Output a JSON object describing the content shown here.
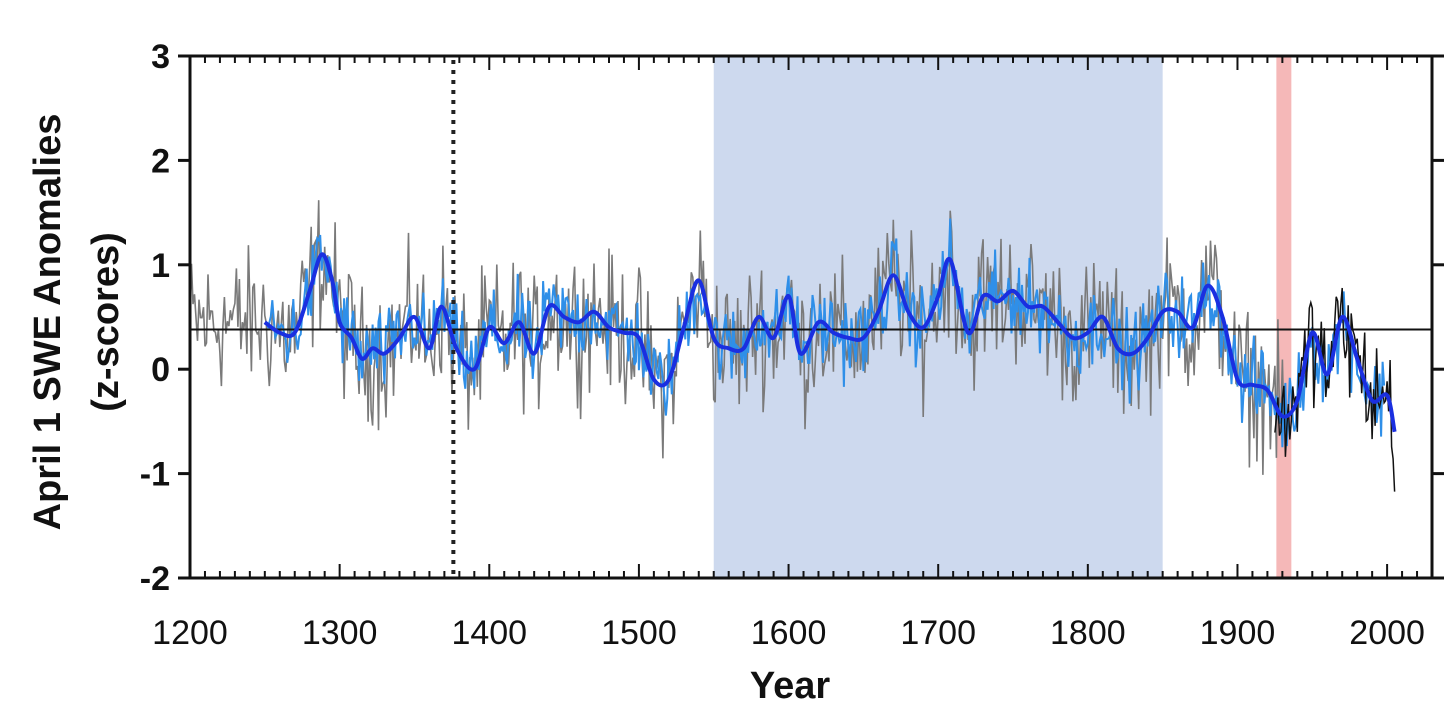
{
  "chart_data": {
    "type": "line",
    "title": "",
    "xlabel": "Year",
    "ylabel_line1": "April 1 SWE Anomalies",
    "ylabel_line2": "(z-scores)",
    "xlim": [
      1200,
      2030
    ],
    "ylim": [
      -2,
      3
    ],
    "x_ticks": [
      1200,
      1300,
      1400,
      1500,
      1600,
      1700,
      1800,
      1900,
      2000
    ],
    "x_tick_labels": [
      "1200",
      "1300",
      "1400",
      "1500",
      "1600",
      "1700",
      "1800",
      "1900",
      "2000"
    ],
    "y_ticks": [
      -2,
      -1,
      0,
      1,
      2,
      3
    ],
    "y_tick_labels": [
      "-2",
      "-1",
      "0",
      "1",
      "2",
      "3"
    ],
    "reference_line_y": 0.38,
    "vertical_marker_x": 1376,
    "shaded_spans": [
      {
        "from": 1550,
        "to": 1850,
        "color": "#cdd9ee"
      },
      {
        "from": 1926,
        "to": 1936,
        "color": "#f5b8b8"
      }
    ],
    "colors": {
      "raw_reconstruction": "#7a7a7a",
      "filtered_reconstruction": "#2f8fe8",
      "smoothed_reconstruction": "#1a2fe0",
      "observed": "#111111",
      "reference": "#111111"
    },
    "series": [
      {
        "x": [
          1250,
          1260,
          1270,
          1280,
          1288,
          1295,
          1300,
          1308,
          1315,
          1322,
          1330,
          1340,
          1350,
          1360,
          1368,
          1378,
          1390,
          1400,
          1410,
          1420,
          1430,
          1440,
          1450,
          1460,
          1470,
          1480,
          1490,
          1500,
          1510,
          1520,
          1530,
          1540,
          1550,
          1560,
          1570,
          1580,
          1590,
          1600,
          1608,
          1620,
          1630,
          1640,
          1650,
          1660,
          1670,
          1680,
          1690,
          1700,
          1708,
          1720,
          1730,
          1740,
          1750,
          1760,
          1770,
          1780,
          1790,
          1800,
          1810,
          1820,
          1830,
          1840,
          1850,
          1860,
          1870,
          1880,
          1890,
          1900,
          1910,
          1920,
          1930,
          1940,
          1950,
          1960,
          1970,
          1980,
          1990,
          2000,
          2005
        ],
        "values": [
          0.45,
          0.35,
          0.35,
          0.75,
          1.1,
          0.85,
          0.45,
          0.3,
          0.1,
          0.2,
          0.15,
          0.3,
          0.5,
          0.2,
          0.6,
          0.2,
          0.0,
          0.4,
          0.25,
          0.45,
          0.15,
          0.6,
          0.5,
          0.45,
          0.55,
          0.4,
          0.35,
          0.3,
          -0.1,
          -0.1,
          0.4,
          0.85,
          0.3,
          0.2,
          0.2,
          0.5,
          0.3,
          0.7,
          0.15,
          0.45,
          0.35,
          0.3,
          0.3,
          0.55,
          0.9,
          0.55,
          0.4,
          0.7,
          1.05,
          0.35,
          0.7,
          0.65,
          0.75,
          0.6,
          0.6,
          0.45,
          0.3,
          0.35,
          0.5,
          0.2,
          0.15,
          0.3,
          0.55,
          0.55,
          0.4,
          0.8,
          0.5,
          -0.1,
          -0.15,
          -0.2,
          -0.45,
          -0.3,
          0.35,
          -0.05,
          0.5,
          0.1,
          -0.3,
          -0.25,
          -0.6
        ]
      }
    ]
  }
}
